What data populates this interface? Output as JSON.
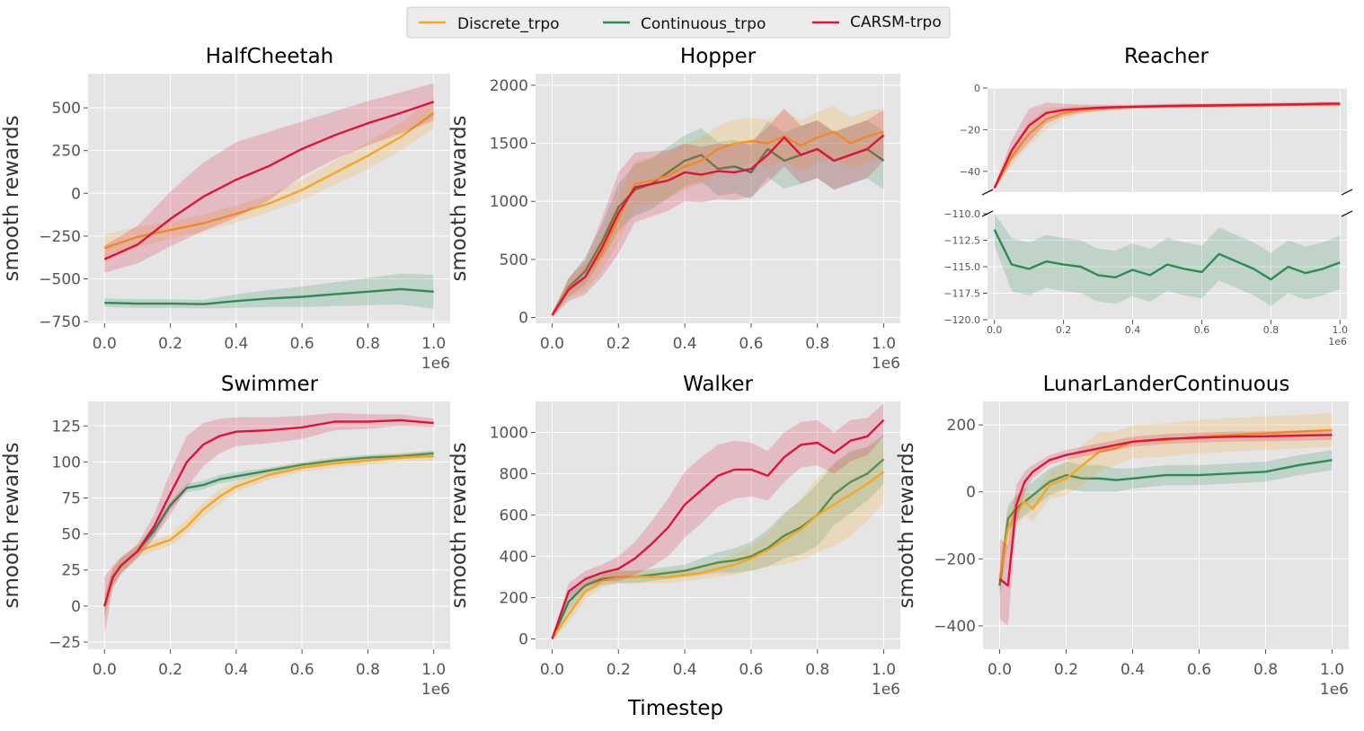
{
  "figure": {
    "xlabel": "Timestep",
    "colors": {
      "Discrete_trpo": "#f5a623",
      "Continuous_trpo": "#2e8b57",
      "CARSM-trpo": "#dc143c",
      "panel_bg": "#e5e5e5",
      "grid": "#ffffff"
    },
    "legend": {
      "position": "top-center",
      "entries": [
        "Discrete_trpo",
        "Continuous_trpo",
        "CARSM-trpo"
      ]
    }
  },
  "chart_data": [
    {
      "type": "line",
      "title": "HalfCheetah",
      "ylabel": "smooth rewards",
      "xlabel": "",
      "xlim": [
        -0.05,
        1.05
      ],
      "ylim": [
        -760,
        700
      ],
      "xticks": [
        "0.0",
        "0.2",
        "0.4",
        "0.6",
        "0.8",
        "1.0"
      ],
      "xtick_values": [
        0,
        0.2,
        0.4,
        0.6,
        0.8,
        1.0
      ],
      "x_offset_label": "1e6",
      "yticks": [
        "−750",
        "−500",
        "−250",
        "0",
        "250",
        "500"
      ],
      "ytick_values": [
        -750,
        -500,
        -250,
        0,
        250,
        500
      ],
      "x": [
        0.0,
        0.1,
        0.2,
        0.3,
        0.4,
        0.5,
        0.6,
        0.7,
        0.8,
        0.9,
        1.0
      ],
      "series": [
        {
          "name": "Discrete_trpo",
          "values": [
            -320,
            -255,
            -215,
            -175,
            -120,
            -60,
            20,
            120,
            220,
            330,
            470
          ],
          "band": [
            80,
            60,
            50,
            50,
            50,
            50,
            60,
            70,
            80,
            80,
            90
          ]
        },
        {
          "name": "Continuous_trpo",
          "values": [
            -640,
            -645,
            -645,
            -648,
            -630,
            -615,
            -605,
            -590,
            -575,
            -560,
            -575
          ],
          "band": [
            25,
            25,
            25,
            25,
            40,
            50,
            60,
            70,
            80,
            90,
            100
          ]
        },
        {
          "name": "CARSM-trpo",
          "values": [
            -385,
            -300,
            -150,
            -20,
            80,
            160,
            260,
            340,
            410,
            470,
            535
          ],
          "band": [
            80,
            110,
            160,
            200,
            220,
            200,
            160,
            140,
            130,
            120,
            110
          ]
        }
      ]
    },
    {
      "type": "line",
      "title": "Hopper",
      "ylabel": "smooth rewards",
      "xlabel": "",
      "xlim": [
        -0.05,
        1.05
      ],
      "ylim": [
        -50,
        2100
      ],
      "xticks": [
        "0.0",
        "0.2",
        "0.4",
        "0.6",
        "0.8",
        "1.0"
      ],
      "xtick_values": [
        0,
        0.2,
        0.4,
        0.6,
        0.8,
        1.0
      ],
      "x_offset_label": "1e6",
      "yticks": [
        "0",
        "500",
        "1000",
        "1500",
        "2000"
      ],
      "ytick_values": [
        0,
        500,
        1000,
        1500,
        2000
      ],
      "x": [
        0.0,
        0.05,
        0.1,
        0.15,
        0.2,
        0.25,
        0.3,
        0.35,
        0.4,
        0.45,
        0.5,
        0.55,
        0.6,
        0.65,
        0.7,
        0.75,
        0.8,
        0.85,
        0.9,
        0.95,
        1.0
      ],
      "series": [
        {
          "name": "Discrete_trpo",
          "values": [
            20,
            250,
            350,
            550,
            850,
            1150,
            1180,
            1220,
            1300,
            1350,
            1450,
            1500,
            1520,
            1500,
            1560,
            1480,
            1550,
            1600,
            1500,
            1560,
            1600
          ],
          "band": [
            20,
            80,
            120,
            150,
            200,
            200,
            200,
            200,
            200,
            200,
            200,
            200,
            200,
            200,
            220,
            220,
            220,
            220,
            220,
            220,
            200
          ]
        },
        {
          "name": "Continuous_trpo",
          "values": [
            20,
            260,
            400,
            650,
            950,
            1100,
            1150,
            1250,
            1350,
            1400,
            1280,
            1300,
            1250,
            1450,
            1350,
            1400,
            1450,
            1350,
            1400,
            1450,
            1350
          ],
          "band": [
            20,
            80,
            120,
            150,
            200,
            220,
            220,
            220,
            220,
            230,
            230,
            230,
            230,
            240,
            240,
            250,
            250,
            250,
            250,
            250,
            250
          ]
        },
        {
          "name": "CARSM-trpo",
          "values": [
            20,
            240,
            350,
            600,
            900,
            1120,
            1150,
            1180,
            1250,
            1230,
            1260,
            1250,
            1280,
            1400,
            1550,
            1400,
            1450,
            1350,
            1400,
            1450,
            1570
          ],
          "band": [
            20,
            100,
            150,
            250,
            350,
            300,
            280,
            260,
            250,
            240,
            240,
            240,
            240,
            240,
            250,
            250,
            250,
            250,
            250,
            250,
            220
          ]
        }
      ]
    },
    {
      "type": "line",
      "title": "Reacher",
      "ylabel": "",
      "xlabel": "",
      "broken_y_axis": true,
      "xlim": [
        -0.02,
        1.02
      ],
      "xticks": [
        "0.0",
        "0.2",
        "0.4",
        "0.6",
        "0.8",
        "1.0"
      ],
      "xtick_values": [
        0,
        0.2,
        0.4,
        0.6,
        0.8,
        1.0
      ],
      "x_offset_label": "1e6",
      "upper": {
        "ylim": [
          -50,
          0
        ],
        "yticks": [
          "0",
          "−20",
          "−40"
        ],
        "ytick_values": [
          0,
          -20,
          -40
        ]
      },
      "lower": {
        "ylim": [
          -120,
          -110
        ],
        "yticks": [
          "−110.0",
          "−112.5",
          "−115.0",
          "−117.5",
          "−120.0"
        ],
        "ytick_values": [
          -110,
          -112.5,
          -115,
          -117.5,
          -120
        ]
      },
      "x": [
        0.0,
        0.05,
        0.1,
        0.15,
        0.2,
        0.25,
        0.3,
        0.35,
        0.4,
        0.45,
        0.5,
        0.55,
        0.6,
        0.65,
        0.7,
        0.75,
        0.8,
        0.85,
        0.9,
        0.95,
        1.0
      ],
      "series": [
        {
          "name": "Discrete_trpo",
          "axis": "upper",
          "values": [
            -48,
            -33,
            -22,
            -15,
            -12,
            -10.5,
            -10,
            -9.5,
            -9,
            -9,
            -8.8,
            -8.8,
            -8.6,
            -8.5,
            -8.4,
            -8.3,
            -8.2,
            -8.1,
            -8,
            -8,
            -7.8
          ],
          "band": [
            1,
            4,
            6,
            5,
            3,
            2,
            1.5,
            1.2,
            1,
            1,
            1,
            1,
            1,
            1,
            1,
            1,
            1,
            1,
            1,
            1,
            1
          ]
        },
        {
          "name": "CARSM-trpo",
          "axis": "upper",
          "values": [
            -48,
            -30,
            -18,
            -12,
            -10.5,
            -10,
            -9.5,
            -9.2,
            -9,
            -8.8,
            -8.6,
            -8.5,
            -8.4,
            -8.3,
            -8.2,
            -8.1,
            -8,
            -7.9,
            -7.8,
            -7.6,
            -7.5
          ],
          "band": [
            1,
            5,
            8,
            5,
            3,
            2,
            1.5,
            1.2,
            1,
            1,
            1,
            1,
            1,
            1,
            1,
            1,
            1,
            1,
            1,
            1,
            1
          ]
        },
        {
          "name": "Continuous_trpo",
          "axis": "lower",
          "values": [
            -111.5,
            -114.8,
            -115.2,
            -114.5,
            -114.8,
            -115.0,
            -115.8,
            -116.0,
            -115.3,
            -115.8,
            -114.8,
            -115.2,
            -115.5,
            -113.8,
            -114.5,
            -115.2,
            -116.2,
            -115.0,
            -115.6,
            -115.2,
            -114.6
          ],
          "band": [
            1.5,
            2.5,
            2.5,
            2.5,
            2.5,
            2.5,
            2.5,
            2.5,
            2.5,
            2.5,
            2.5,
            2.5,
            2.5,
            2.5,
            2.5,
            2.5,
            2.5,
            2.5,
            2.5,
            2.5,
            2.5
          ]
        }
      ]
    },
    {
      "type": "line",
      "title": "Swimmer",
      "ylabel": "smooth rewards",
      "xlabel": "",
      "xlim": [
        -0.05,
        1.05
      ],
      "ylim": [
        -30,
        142
      ],
      "xticks": [
        "0.0",
        "0.2",
        "0.4",
        "0.6",
        "0.8",
        "1.0"
      ],
      "xtick_values": [
        0,
        0.2,
        0.4,
        0.6,
        0.8,
        1.0
      ],
      "x_offset_label": "1e6",
      "yticks": [
        "−25",
        "0",
        "25",
        "50",
        "75",
        "100",
        "125"
      ],
      "ytick_values": [
        -25,
        0,
        25,
        50,
        75,
        100,
        125
      ],
      "x": [
        0.0,
        0.025,
        0.05,
        0.1,
        0.15,
        0.2,
        0.25,
        0.3,
        0.35,
        0.4,
        0.5,
        0.6,
        0.7,
        0.8,
        0.9,
        1.0
      ],
      "series": [
        {
          "name": "Discrete_trpo",
          "values": [
            0,
            20,
            28,
            38,
            42,
            46,
            55,
            67,
            76,
            83,
            91,
            96,
            99,
            101,
            103,
            104
          ],
          "band": [
            8,
            6,
            5,
            4,
            4,
            4,
            5,
            5,
            5,
            4,
            3,
            3,
            3,
            3,
            3,
            3
          ]
        },
        {
          "name": "Continuous_trpo",
          "values": [
            0,
            20,
            28,
            38,
            52,
            70,
            82,
            84,
            88,
            90,
            94,
            98,
            101,
            103,
            104,
            106
          ],
          "band": [
            8,
            6,
            5,
            4,
            4,
            3,
            3,
            3,
            3,
            3,
            2,
            2,
            2,
            2,
            2,
            2
          ]
        },
        {
          "name": "CARSM-trpo",
          "values": [
            0,
            20,
            28,
            38,
            55,
            78,
            100,
            112,
            118,
            121,
            122,
            124,
            128,
            128,
            129,
            127
          ],
          "band": [
            20,
            8,
            6,
            5,
            8,
            15,
            18,
            15,
            12,
            10,
            9,
            8,
            6,
            5,
            4,
            3
          ]
        }
      ]
    },
    {
      "type": "line",
      "title": "Walker",
      "ylabel": "smooth rewards",
      "xlabel": "",
      "xlim": [
        -0.05,
        1.05
      ],
      "ylim": [
        -50,
        1150
      ],
      "xticks": [
        "0.0",
        "0.2",
        "0.4",
        "0.6",
        "0.8",
        "1.0"
      ],
      "xtick_values": [
        0,
        0.2,
        0.4,
        0.6,
        0.8,
        1.0
      ],
      "x_offset_label": "1e6",
      "yticks": [
        "0",
        "200",
        "400",
        "600",
        "800",
        "1000"
      ],
      "ytick_values": [
        0,
        200,
        400,
        600,
        800,
        1000
      ],
      "x": [
        0.0,
        0.05,
        0.1,
        0.15,
        0.2,
        0.25,
        0.3,
        0.35,
        0.4,
        0.45,
        0.5,
        0.55,
        0.6,
        0.65,
        0.7,
        0.75,
        0.8,
        0.85,
        0.9,
        0.95,
        1.0
      ],
      "series": [
        {
          "name": "Discrete_trpo",
          "values": [
            0,
            120,
            230,
            280,
            300,
            300,
            300,
            300,
            310,
            320,
            340,
            360,
            390,
            430,
            480,
            530,
            600,
            650,
            700,
            750,
            810
          ],
          "band": [
            5,
            40,
            40,
            30,
            30,
            30,
            30,
            30,
            30,
            30,
            40,
            50,
            60,
            80,
            120,
            150,
            180,
            200,
            200,
            180,
            150
          ]
        },
        {
          "name": "Continuous_trpo",
          "values": [
            0,
            180,
            260,
            290,
            300,
            300,
            310,
            320,
            330,
            350,
            370,
            380,
            400,
            440,
            500,
            540,
            600,
            700,
            760,
            800,
            870
          ],
          "band": [
            5,
            40,
            40,
            30,
            30,
            30,
            30,
            30,
            30,
            40,
            50,
            60,
            70,
            90,
            110,
            130,
            150,
            150,
            150,
            130,
            120
          ]
        },
        {
          "name": "CARSM-trpo",
          "values": [
            0,
            230,
            290,
            320,
            340,
            390,
            460,
            540,
            650,
            720,
            790,
            820,
            820,
            790,
            880,
            940,
            950,
            900,
            960,
            980,
            1060
          ],
          "band": [
            5,
            40,
            40,
            40,
            60,
            80,
            110,
            140,
            160,
            160,
            150,
            140,
            130,
            120,
            120,
            110,
            110,
            100,
            100,
            90,
            80
          ]
        }
      ]
    },
    {
      "type": "line",
      "title": "LunarLanderContinuous",
      "ylabel": "smooth rewards",
      "xlabel": "",
      "xlim": [
        -0.05,
        1.05
      ],
      "ylim": [
        -470,
        270
      ],
      "xticks": [
        "0.0",
        "0.2",
        "0.4",
        "0.6",
        "0.8",
        "1.0"
      ],
      "xtick_values": [
        0,
        0.2,
        0.4,
        0.6,
        0.8,
        1.0
      ],
      "x_offset_label": "1e6",
      "yticks": [
        "−400",
        "−200",
        "0",
        "200"
      ],
      "ytick_values": [
        -400,
        -200,
        0,
        200
      ],
      "x": [
        0.0,
        0.025,
        0.05,
        0.075,
        0.1,
        0.15,
        0.2,
        0.25,
        0.3,
        0.35,
        0.4,
        0.5,
        0.6,
        0.7,
        0.8,
        0.9,
        1.0
      ],
      "series": [
        {
          "name": "Discrete_trpo",
          "values": [
            -260,
            -110,
            -60,
            -30,
            -50,
            20,
            40,
            80,
            120,
            130,
            150,
            155,
            165,
            170,
            175,
            180,
            185
          ],
          "band": [
            40,
            60,
            50,
            40,
            40,
            40,
            50,
            60,
            60,
            50,
            50,
            50,
            50,
            50,
            50,
            50,
            50
          ]
        },
        {
          "name": "Continuous_trpo",
          "values": [
            -280,
            -80,
            -50,
            -30,
            -10,
            30,
            50,
            40,
            40,
            35,
            40,
            50,
            50,
            55,
            60,
            80,
            95
          ],
          "band": [
            40,
            40,
            40,
            40,
            40,
            40,
            40,
            40,
            40,
            35,
            30,
            30,
            30,
            30,
            30,
            30,
            30
          ]
        },
        {
          "name": "CARSM-trpo",
          "values": [
            -260,
            -280,
            -40,
            30,
            60,
            95,
            110,
            120,
            130,
            140,
            150,
            158,
            162,
            165,
            166,
            168,
            170
          ],
          "band": [
            120,
            120,
            60,
            30,
            20,
            15,
            15,
            15,
            15,
            15,
            15,
            15,
            15,
            15,
            15,
            15,
            15
          ]
        }
      ]
    }
  ]
}
